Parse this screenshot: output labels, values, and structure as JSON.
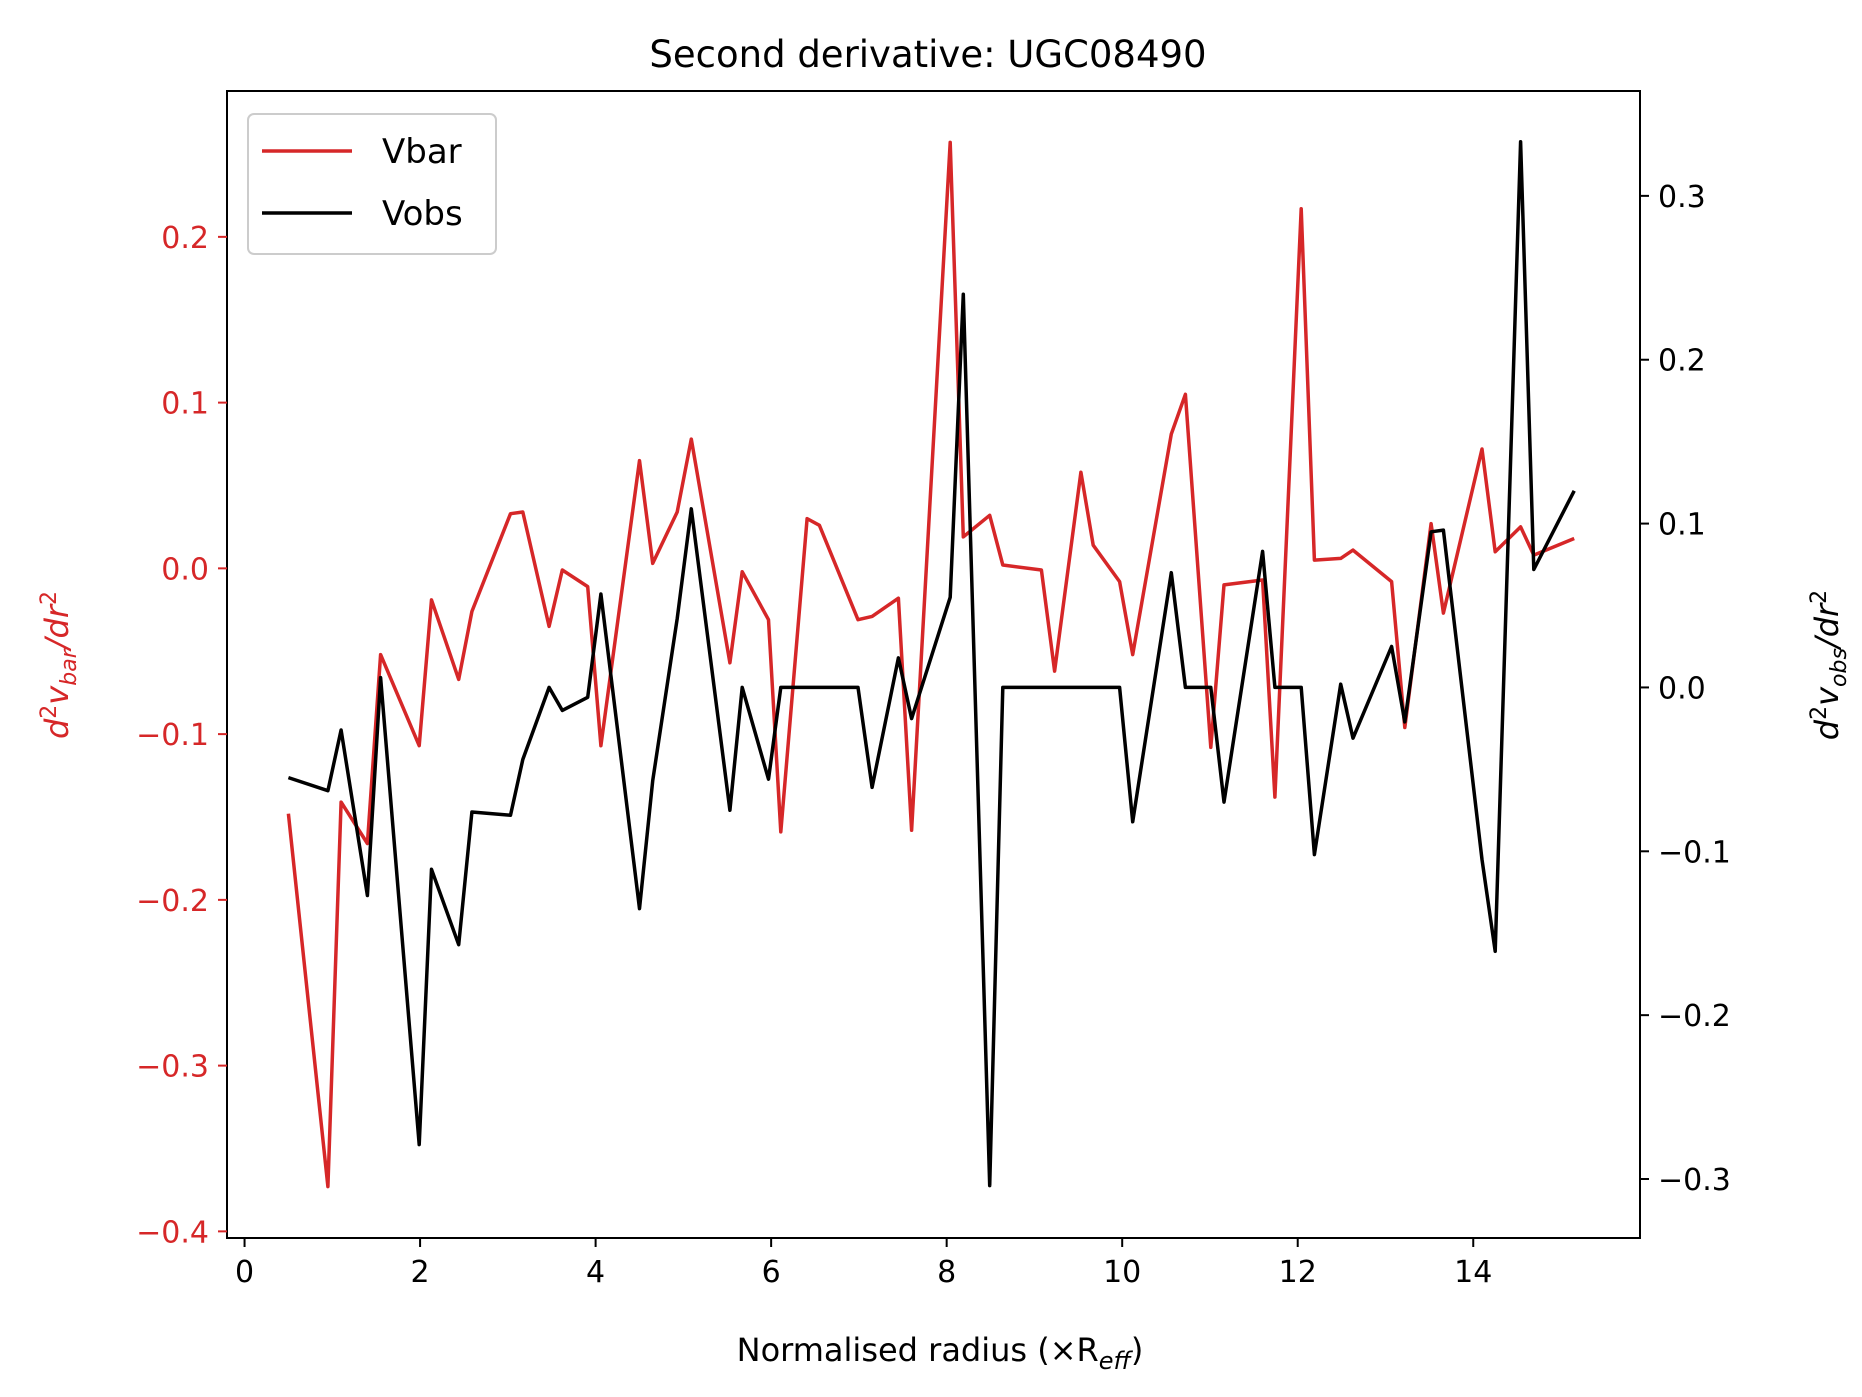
{
  "chart_data": {
    "type": "line",
    "title": "Second derivative: UGC08490",
    "xlabel": "Normalised radius (×R",
    "xlabel_sub": "eff",
    "xlabel_close": ")",
    "xlim": [
      -0.2,
      15.9
    ],
    "xticks": [
      "0",
      "2",
      "4",
      "6",
      "8",
      "10",
      "12",
      "14"
    ],
    "left_axis": {
      "label_d": "d",
      "label_sup": "2",
      "label_v": "v",
      "label_sub": "bar",
      "label_rest": "/dr",
      "label_sup2": "2",
      "ylim": [
        -0.404,
        0.288
      ],
      "ticks": [
        "0.2",
        "0.1",
        "0.0",
        "−0.1",
        "−0.2",
        "−0.3",
        "−0.4"
      ],
      "tick_values": [
        0.2,
        0.1,
        0.0,
        -0.1,
        -0.2,
        -0.3,
        -0.4
      ],
      "color": "#d62728"
    },
    "right_axis": {
      "label_d": "d",
      "label_sup": "2",
      "label_v": "v",
      "label_sub": "obs",
      "label_rest": "/dr",
      "label_sup2": "2",
      "ylim": [
        -0.336,
        0.364
      ],
      "ticks": [
        "0.3",
        "0.2",
        "0.1",
        "0.0",
        "−0.1",
        "−0.2",
        "−0.3"
      ],
      "tick_values": [
        0.3,
        0.2,
        0.1,
        0.0,
        -0.1,
        -0.2,
        -0.3
      ],
      "color": "#000000"
    },
    "legend": {
      "position": "top-left",
      "entries": [
        "Vbar",
        "Vobs"
      ]
    },
    "series": [
      {
        "name": "Vbar",
        "axis": "left",
        "color": "#d62728",
        "x": [
          0.5,
          0.95,
          1.1,
          1.4,
          1.55,
          1.99,
          2.13,
          2.44,
          2.59,
          3.03,
          3.17,
          3.47,
          3.62,
          3.91,
          4.06,
          4.5,
          4.65,
          4.93,
          5.09,
          5.53,
          5.67,
          5.97,
          6.11,
          6.41,
          6.55,
          6.99,
          7.15,
          7.45,
          7.6,
          8.04,
          8.19,
          8.49,
          8.64,
          9.08,
          9.23,
          9.53,
          9.67,
          9.97,
          10.12,
          10.56,
          10.72,
          11.01,
          11.16,
          11.6,
          11.74,
          12.04,
          12.19,
          12.49,
          12.63,
          13.07,
          13.22,
          13.52,
          13.66,
          14.1,
          14.25,
          14.54,
          14.69,
          15.15
        ],
        "y": [
          -0.148,
          -0.373,
          -0.141,
          -0.166,
          -0.052,
          -0.107,
          -0.019,
          -0.067,
          -0.026,
          0.033,
          0.034,
          -0.035,
          -0.001,
          -0.011,
          -0.107,
          0.065,
          0.003,
          0.034,
          0.078,
          -0.057,
          -0.002,
          -0.031,
          -0.159,
          0.03,
          0.026,
          -0.031,
          -0.029,
          -0.018,
          -0.158,
          0.257,
          0.019,
          0.032,
          0.002,
          -0.001,
          -0.062,
          0.058,
          0.014,
          -0.008,
          -0.052,
          0.081,
          0.105,
          -0.108,
          -0.01,
          -0.007,
          -0.138,
          0.217,
          0.005,
          0.006,
          0.011,
          -0.008,
          -0.096,
          0.027,
          -0.027,
          0.072,
          0.01,
          0.025,
          0.008,
          0.018
        ]
      },
      {
        "name": "Vobs",
        "axis": "right",
        "color": "#000000",
        "x": [
          0.5,
          0.95,
          1.1,
          1.4,
          1.55,
          1.99,
          2.13,
          2.44,
          2.59,
          3.03,
          3.17,
          3.47,
          3.62,
          3.91,
          4.06,
          4.5,
          4.65,
          4.93,
          5.09,
          5.53,
          5.67,
          5.97,
          6.11,
          6.41,
          6.55,
          6.99,
          7.15,
          7.45,
          7.6,
          8.04,
          8.19,
          8.49,
          8.64,
          9.08,
          9.23,
          9.53,
          9.67,
          9.97,
          10.12,
          10.56,
          10.72,
          11.01,
          11.16,
          11.6,
          11.74,
          12.04,
          12.19,
          12.49,
          12.63,
          13.07,
          13.22,
          13.52,
          13.66,
          14.1,
          14.25,
          14.54,
          14.69,
          15.15
        ],
        "y": [
          -0.055,
          -0.063,
          -0.026,
          -0.127,
          0.006,
          -0.279,
          -0.111,
          -0.157,
          -0.076,
          -0.078,
          -0.044,
          0.0,
          -0.014,
          -0.006,
          0.057,
          -0.135,
          -0.057,
          0.042,
          0.109,
          -0.075,
          0.0,
          -0.056,
          0.0,
          0.0,
          0.0,
          0.0,
          -0.061,
          0.018,
          -0.019,
          0.055,
          0.24,
          -0.304,
          0.0,
          0.0,
          0.0,
          0.0,
          0.0,
          0.0,
          -0.082,
          0.07,
          0.0,
          0.0,
          -0.07,
          0.083,
          0.0,
          0.0,
          -0.102,
          0.002,
          -0.031,
          0.025,
          -0.021,
          0.095,
          0.096,
          -0.105,
          -0.161,
          0.333,
          0.072,
          0.12
        ]
      }
    ]
  }
}
